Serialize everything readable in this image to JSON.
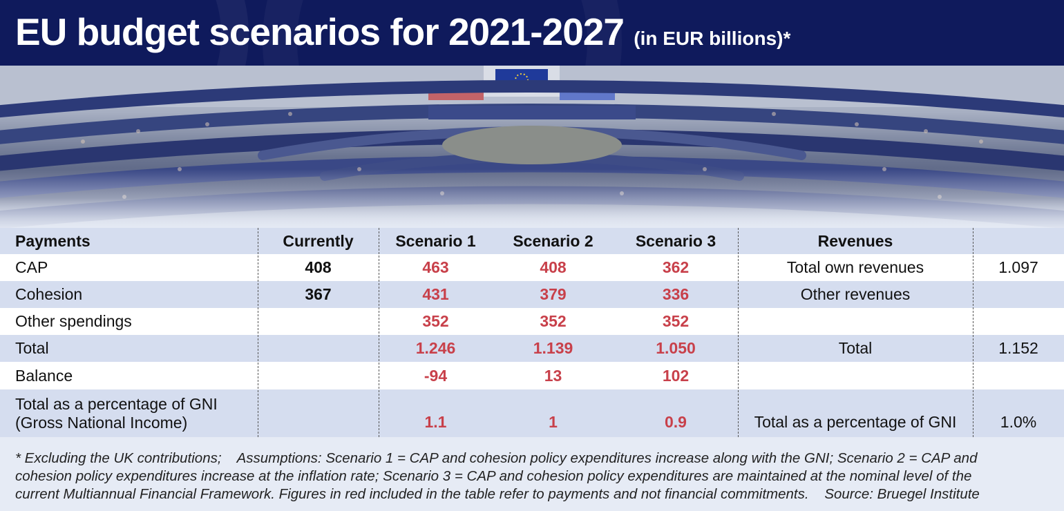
{
  "header": {
    "title": "EU budget scenarios for 2021-2027",
    "subtitle": "(in EUR billions)*"
  },
  "table": {
    "columns": [
      "Payments",
      "Currently",
      "Scenario 1",
      "Scenario 2",
      "Scenario 3",
      "Revenues",
      ""
    ],
    "rows": [
      {
        "label": "CAP",
        "currently": "408",
        "s1": "463",
        "s2": "408",
        "s3": "362",
        "rev_label": "Total own revenues",
        "rev_value": "1.097"
      },
      {
        "label": "Cohesion",
        "currently": "367",
        "s1": "431",
        "s2": "379",
        "s3": "336",
        "rev_label": "Other revenues",
        "rev_value": ""
      },
      {
        "label": "Other spendings",
        "currently": "",
        "s1": "352",
        "s2": "352",
        "s3": "352",
        "rev_label": "",
        "rev_value": ""
      },
      {
        "label": "Total",
        "currently": "",
        "s1": "1.246",
        "s2": "1.139",
        "s3": "1.050",
        "rev_label": "Total",
        "rev_value": "1.152"
      },
      {
        "label": "Balance",
        "currently": "",
        "s1": "-94",
        "s2": "13",
        "s3": "102",
        "rev_label": "",
        "rev_value": ""
      }
    ],
    "gni_row": {
      "label_line1": "Total as a percentage of GNI",
      "label_line2": "(Gross National Income)",
      "s1": "1.1",
      "s2": "1",
      "s3": "0.9",
      "rev_label": "Total as a percentage of GNI",
      "rev_value": "1.0%"
    }
  },
  "footnote": {
    "line1": "* Excluding the UK contributions;    Assumptions: Scenario 1 = CAP and cohesion policy expenditures increase along with the GNI; Scenario 2 = CAP and",
    "line2": "cohesion policy expenditures increase at the inflation rate; Scenario 3 = CAP and cohesion policy expenditures are maintained at the nominal level of the",
    "line3": "current Multiannual Financial Framework. Figures in red included in the table refer to payments and not financial commitments.    Source: Bruegel Institute"
  },
  "colors": {
    "header_bg": "#0f1a5c",
    "red_figures": "#c8404a",
    "band": "#d5ddef"
  },
  "photo": {
    "icon": "parliament-hemicycle-photo"
  }
}
